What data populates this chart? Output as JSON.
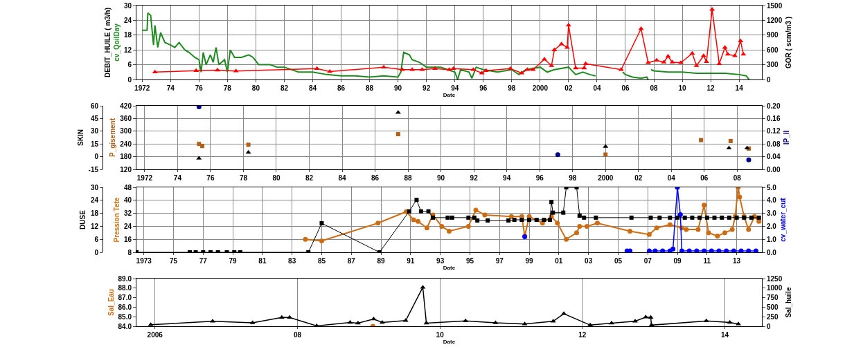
{
  "chart_data": [
    {
      "type": "line",
      "xlabel": "Date",
      "ylabel": "DEBIT_HUILE ( m3/h)",
      "y2label": "GOR ( scm/m3 )",
      "grid": true,
      "xlim": [
        1971.6,
        2015.6
      ],
      "xticks": [
        1972,
        {
          "value": 1974,
          "label": "74"
        },
        {
          "value": 1976,
          "label": "76"
        },
        {
          "value": 1978,
          "label": "78"
        },
        {
          "value": 1980,
          "label": "80"
        },
        {
          "value": 1982,
          "label": "82"
        },
        {
          "value": 1984,
          "label": "84"
        },
        {
          "value": 1986,
          "label": "86"
        },
        {
          "value": 1988,
          "label": "88"
        },
        {
          "value": 1990,
          "label": "90"
        },
        {
          "value": 1992,
          "label": "92"
        },
        {
          "value": 1994,
          "label": "94"
        },
        {
          "value": 1996,
          "label": "96"
        },
        {
          "value": 1998,
          "label": "98"
        },
        2000,
        {
          "value": 2002,
          "label": "02"
        },
        {
          "value": 2004,
          "label": "04"
        },
        {
          "value": 2006,
          "label": "06"
        },
        {
          "value": 2008,
          "label": "08"
        },
        {
          "value": 2010,
          "label": "10"
        },
        {
          "value": 2012,
          "label": "12"
        },
        {
          "value": 2014,
          "label": "14"
        }
      ],
      "ylim": [
        0,
        30
      ],
      "yticks": [
        0,
        6,
        12,
        18,
        24,
        30
      ],
      "y2lim": [
        0,
        1500
      ],
      "y2ticks": [
        0,
        300,
        600,
        900,
        1200,
        1500
      ],
      "series": [
        {
          "name": "cv_QoilDay",
          "type": "line",
          "axis": "y",
          "color": "#1f8a1f",
          "marker": "none",
          "x": [
            1972.0,
            1972.35,
            1972.4,
            1972.6,
            1972.8,
            1972.9,
            1973.1,
            1973.3,
            1973.6,
            1974.0,
            1974.3,
            1974.6,
            1975.0,
            1975.3,
            1975.7,
            1976.0,
            1976.15,
            1976.3,
            1976.5,
            1976.8,
            1977.0,
            1977.2,
            1977.4,
            1977.8,
            1978.0,
            1978.2,
            1978.5,
            1979.0,
            1979.5,
            1979.8,
            1980.2,
            1981.0,
            1981.5,
            1982.0,
            1983.0,
            1984.0,
            1985.0,
            1986.0,
            1987.0,
            1988.0,
            1989.0,
            1990.0,
            1990.2,
            1990.4,
            1990.8,
            1991.0,
            1991.5,
            1992.0,
            1993.0,
            1993.5,
            1994.0,
            1994.2,
            1994.4,
            1995.0,
            1995.2,
            1995.5,
            1996.0,
            1997.0,
            1998.0,
            1998.5,
            1999.0,
            2000.0,
            2000.5,
            2001.0,
            2002.0,
            2002.5,
            2003.0,
            2003.5,
            2003.9,
            2005.0,
            2005.8,
            2006.0,
            2006.5,
            2007.1,
            2007.5,
            2007.6,
            2007.7,
            2007.8,
            2008.0,
            2009.0,
            2010.0,
            2011.0,
            2012.0,
            2013.0,
            2014.0,
            2014.5,
            2014.7
          ],
          "values": [
            20,
            20,
            27,
            26,
            14,
            22,
            13,
            19,
            15,
            14,
            13,
            15,
            12,
            11,
            9,
            8,
            3,
            11,
            6,
            10,
            7,
            13,
            6,
            8,
            3,
            12,
            9,
            9,
            10,
            9,
            6,
            6,
            5,
            5,
            3,
            3,
            2,
            1.5,
            1.5,
            1,
            1.5,
            1,
            3,
            11,
            10,
            8,
            7,
            5,
            5,
            4,
            3,
            0,
            4,
            3,
            0.5,
            5,
            4,
            3,
            4,
            2,
            4,
            5,
            3,
            4,
            5,
            2,
            3,
            2,
            1.5,
            null,
            3,
            2,
            1,
            0.5,
            1,
            0,
            null,
            4,
            3.5,
            3,
            3,
            2.5,
            2.5,
            2.5,
            2,
            1.5,
            0
          ]
        },
        {
          "type": "line",
          "axis": "y2",
          "color": "#ff0000",
          "marker": "triangle",
          "x": [
            1972.9,
            1975.8,
            1977.3,
            1978.6,
            1984.3,
            1985.2,
            1989.0,
            1990.3,
            1991.0,
            1991.7,
            1992.6,
            1993.6,
            1993.9,
            1995.3,
            1995.9,
            1996.2,
            1997.9,
            1998.7,
            1999.1,
            1999.5,
            2000.3,
            2000.8,
            2001.0,
            2001.5,
            2001.9,
            2002.0,
            2002.5,
            2003.1,
            2003.2,
            2005.7,
            2007.1,
            2007.6,
            2008.2,
            2008.7,
            2009.0,
            2009.3,
            2009.9,
            2010.7,
            2011.0,
            2011.5,
            2011.7,
            2012.1,
            2012.6,
            2013.0,
            2013.2,
            2013.7,
            2014.1,
            2014.3
          ],
          "values": [
            150,
            180,
            190,
            170,
            220,
            160,
            250,
            200,
            200,
            200,
            220,
            200,
            220,
            200,
            130,
            180,
            220,
            130,
            200,
            200,
            410,
            280,
            600,
            720,
            650,
            1100,
            230,
            230,
            320,
            200,
            1030,
            340,
            390,
            350,
            470,
            350,
            340,
            530,
            280,
            480,
            360,
            1420,
            320,
            650,
            510,
            480,
            780,
            510
          ]
        }
      ]
    },
    {
      "type": "scatter",
      "grid": true,
      "xlim": [
        1971.5,
        2009.5
      ],
      "xticks": [
        1972,
        {
          "value": 1974,
          "label": "74"
        },
        {
          "value": 1976,
          "label": "76"
        },
        {
          "value": 1978,
          "label": "78"
        },
        {
          "value": 1980,
          "label": "80"
        },
        {
          "value": 1982,
          "label": "82"
        },
        {
          "value": 1984,
          "label": "84"
        },
        {
          "value": 1986,
          "label": "86"
        },
        {
          "value": 1988,
          "label": "88"
        },
        {
          "value": 1990,
          "label": "90"
        },
        {
          "value": 1992,
          "label": "92"
        },
        {
          "value": 1994,
          "label": "94"
        },
        {
          "value": 1996,
          "label": "96"
        },
        {
          "value": 1998,
          "label": "98"
        },
        2000,
        {
          "value": 2002,
          "label": "02"
        },
        {
          "value": 2004,
          "label": "04"
        },
        {
          "value": 2006,
          "label": "06"
        },
        {
          "value": 2008,
          "label": "08"
        }
      ],
      "y3lim": [
        -15,
        60
      ],
      "y3ticks": [
        -15,
        0,
        15,
        30,
        45,
        60
      ],
      "ylim": [
        120,
        420
      ],
      "yticks": [
        120,
        180,
        240,
        300,
        360,
        420
      ],
      "y2lim": [
        0,
        0.2
      ],
      "y2ticks": [
        {
          "value": 0,
          "label": "0.00"
        },
        {
          "value": 0.04,
          "label": "0.04"
        },
        {
          "value": 0.08,
          "label": "0.08"
        },
        {
          "value": 0.12,
          "label": "0.12"
        },
        {
          "value": 0.16,
          "label": "0.16"
        },
        {
          "value": 0.2,
          "label": "0.20"
        }
      ],
      "series": [
        {
          "name": "SKIN",
          "axis": "y3",
          "color": "#000000",
          "marker": "triangle",
          "x": [
            1975.3,
            1978.3,
            1987.4,
            2000.0,
            2007.5,
            2008.6
          ],
          "values": [
            -2,
            5,
            52,
            12,
            10,
            10
          ]
        },
        {
          "name": "P_gisement",
          "axis": "y",
          "color": "#b0601a",
          "marker": "square",
          "x": [
            1975.3,
            1975.5,
            1978.3,
            1987.4,
            2000.0,
            2005.8,
            2007.6,
            2008.7
          ],
          "values": [
            240,
            230,
            236,
            286,
            190,
            258,
            254,
            218
          ]
        },
        {
          "name": "IP_II",
          "axis": "y2",
          "color": "#00008b",
          "marker": "circle",
          "x": [
            1975.3,
            1997.1,
            2008.7
          ],
          "values": [
            0.197,
            0.046,
            0.03
          ]
        }
      ]
    },
    {
      "type": "line",
      "xlabel": "Date",
      "grid": true,
      "xlim": [
        1972.5,
        2014.7
      ],
      "xticks": [
        1973,
        {
          "value": 1975,
          "label": "75"
        },
        {
          "value": 1977,
          "label": "77"
        },
        {
          "value": 1979,
          "label": "79"
        },
        {
          "value": 1981,
          "label": "81"
        },
        {
          "value": 1983,
          "label": "83"
        },
        {
          "value": 1985,
          "label": "85"
        },
        {
          "value": 1987,
          "label": "87"
        },
        {
          "value": 1989,
          "label": "89"
        },
        {
          "value": 1991,
          "label": "91"
        },
        {
          "value": 1993,
          "label": "93"
        },
        {
          "value": 1995,
          "label": "95"
        },
        {
          "value": 1997,
          "label": "97"
        },
        {
          "value": 1999,
          "label": "99"
        },
        {
          "value": 2001,
          "label": "01"
        },
        {
          "value": 2003,
          "label": "03"
        },
        {
          "value": 2005,
          "label": "05"
        },
        {
          "value": 2007,
          "label": "07"
        },
        {
          "value": 2009,
          "label": "09"
        },
        {
          "value": 2011,
          "label": "11"
        },
        {
          "value": 2013,
          "label": "13"
        }
      ],
      "y3lim": [
        0,
        30
      ],
      "y3ticks": [
        0,
        6,
        12,
        18,
        24,
        30
      ],
      "ylim": [
        8,
        48
      ],
      "yticks": [
        8,
        16,
        24,
        32,
        40,
        48
      ],
      "y2lim": [
        0,
        5
      ],
      "y2ticks": [
        {
          "value": 0,
          "label": "0.0"
        },
        {
          "value": 1,
          "label": "1.0"
        },
        {
          "value": 2,
          "label": "2.0"
        },
        {
          "value": 3,
          "label": "3.0"
        },
        {
          "value": 4,
          "label": "4.0"
        },
        {
          "value": 5,
          "label": "5.0"
        }
      ],
      "series": [
        {
          "name": "DUSE",
          "axis": "y3",
          "color": "#000000",
          "marker": "square",
          "x": [
            1972.5,
            1976.1,
            1976.5,
            1977.0,
            1977.5,
            1978.0,
            1978.6,
            1979.1,
            1979.5,
            1984.1,
            1985.0,
            1988.9,
            1990.9,
            1991.4,
            1991.7,
            1992.2,
            1992.5,
            1993.5,
            1993.8,
            1994.9,
            1995.3,
            1995.5,
            1996.2,
            1997.6,
            1998.0,
            1998.5,
            1999.0,
            1999.5,
            2000.0,
            2000.4,
            2000.5,
            2000.6,
            2001.3,
            2001.5,
            2002.2,
            2002.4,
            2002.7,
            2003.5,
            2005.9,
            2007.2,
            2007.8,
            2008.5,
            2009.0,
            2009.5,
            2010.0,
            2010.5,
            2011.0,
            2011.5,
            2012.0,
            2012.5,
            2013.0,
            2013.5,
            2014.0,
            2014.5
          ],
          "values": [
            0,
            0,
            0,
            0,
            0,
            0,
            0,
            0,
            0,
            0,
            13.4,
            0,
            18.9,
            24.2,
            18.9,
            18.9,
            16,
            16,
            16,
            16,
            16,
            14.7,
            14.7,
            14.7,
            15,
            15,
            15,
            15,
            15,
            15,
            23.2,
            18.3,
            18.3,
            30,
            30,
            16.9,
            16,
            16,
            16,
            16,
            16,
            16,
            16,
            16,
            16,
            16,
            16,
            16,
            16,
            16,
            16,
            16,
            16,
            16
          ]
        },
        {
          "name": "Pression Tete",
          "axis": "y",
          "color": "#cc6d14",
          "marker": "circle",
          "x": [
            1983.9,
            1985.0,
            1988.8,
            1990.7,
            1991.2,
            1991.5,
            1992.1,
            1992.5,
            1993.1,
            1993.6,
            1994.9,
            1995.4,
            1996.0,
            1997.8,
            1998.5,
            1998.7,
            1999.0,
            1999.9,
            2000.5,
            2000.9,
            2001.5,
            2002.2,
            2002.4,
            2002.9,
            2003.6,
            2005.8,
            2007.1,
            2007.6,
            2008.5,
            2009.3,
            2009.6,
            2010.4,
            2010.8,
            2011.1,
            2011.7,
            2012.2,
            2012.7,
            2012.9,
            2013.1,
            2013.2,
            2013.5,
            2013.8,
            2014.2,
            2014.5
          ],
          "values": [
            16,
            15,
            26,
            33,
            28,
            27,
            23,
            31,
            24,
            21,
            24,
            34,
            31,
            30,
            30,
            18,
            30,
            26,
            30,
            26,
            16,
            20,
            24,
            24,
            26,
            21,
            19,
            23,
            25,
            23,
            22,
            22,
            37,
            20,
            18,
            20,
            22,
            30,
            48,
            42,
            30,
            22,
            30,
            27
          ]
        },
        {
          "name": "cv_water_cut",
          "axis": "y2",
          "color": "#0000ff",
          "marker": "circle",
          "x": [
            1998.7,
            2002.0,
            2005.6,
            2005.8,
            2006.5,
            2007.1,
            2007.5,
            2008.0,
            2008.5,
            2008.7,
            2009.0,
            2009.2,
            2009.3,
            2009.8,
            2010.3,
            2010.8,
            2011.3,
            2011.8,
            2012.3,
            2012.8,
            2013.3,
            2013.8,
            2014.3
          ],
          "values": [
            1.2,
            null,
            0.1,
            0.1,
            null,
            0.1,
            0.1,
            0.1,
            0.1,
            0.25,
            5.0,
            2.9,
            0.1,
            0.1,
            0.1,
            0.1,
            0.1,
            0.1,
            0.1,
            0.1,
            0.1,
            0.1,
            0.1
          ]
        }
      ]
    },
    {
      "type": "line",
      "xlabel": "Date",
      "grid": "x",
      "xlim": [
        2005.74,
        2014.52
      ],
      "xticks": [
        2006,
        {
          "value": 2008,
          "label": "08"
        },
        {
          "value": 2010,
          "label": "10"
        },
        {
          "value": 2012,
          "label": "12"
        },
        {
          "value": 2014,
          "label": "14"
        }
      ],
      "ylim": [
        84,
        89
      ],
      "yticks": [
        {
          "value": 84,
          "label": "84.0"
        },
        {
          "value": 85,
          "label": "85.0"
        },
        {
          "value": 86,
          "label": "86.0"
        },
        {
          "value": 87,
          "label": "87.0"
        },
        {
          "value": 88,
          "label": "88.0"
        },
        {
          "value": 89,
          "label": "89.0"
        }
      ],
      "y2lim": [
        0,
        1250
      ],
      "y2ticks": [
        0,
        250,
        500,
        750,
        1000,
        1250
      ],
      "series": [
        {
          "name": "Sal_Eau",
          "type": "scatter",
          "axis": "y",
          "color": "#cc6d14",
          "marker": "circle",
          "x": [
            2009.06
          ],
          "values": [
            84.0
          ]
        },
        {
          "name": "Sal_huile",
          "type": "line",
          "axis": "y2",
          "color": "#000000",
          "marker": "triangle",
          "x": [
            2005.94,
            2006.81,
            2007.37,
            2007.78,
            2007.89,
            2008.27,
            2008.74,
            2008.85,
            2009.07,
            2009.19,
            2009.52,
            2009.76,
            2009.81,
            2010.36,
            2010.78,
            2011.19,
            2011.59,
            2011.74,
            2012.11,
            2012.41,
            2012.74,
            2012.89,
            2012.96,
            2012.97,
            2013.74,
            2014.07,
            2014.19
          ],
          "values": [
            40,
            130,
            90,
            230,
            230,
            10,
            100,
            80,
            190,
            100,
            150,
            1020,
            80,
            140,
            90,
            60,
            130,
            330,
            30,
            80,
            130,
            240,
            230,
            30,
            140,
            100,
            60
          ]
        }
      ]
    }
  ]
}
